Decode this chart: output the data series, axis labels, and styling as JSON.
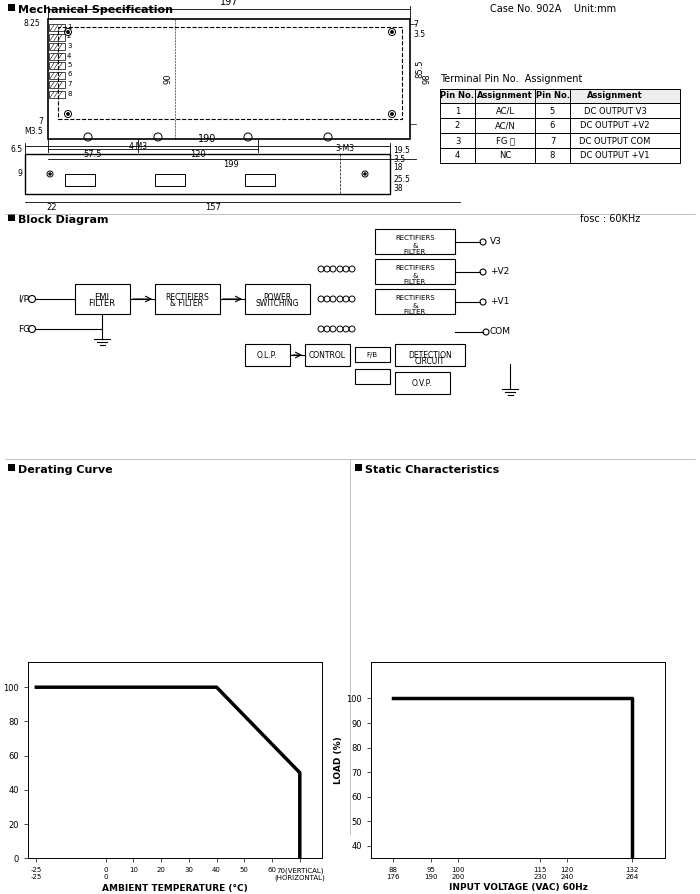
{
  "title": "Mechanical Specification",
  "case_info": "Case No. 902A   Unit:mm",
  "bg_color": "#ffffff",
  "section_headers": [
    "Mechanical Specification",
    "Block Diagram",
    "Derating Curve",
    "Static Characteristics"
  ],
  "terminal_table": {
    "header": "Terminal Pin No.  Assignment",
    "cols": [
      "Pin No.",
      "Assignment",
      "Pin No.",
      "Assignment"
    ],
    "rows": [
      [
        "1",
        "AC/L",
        "5",
        "DC OUTPUT V3"
      ],
      [
        "2",
        "AC/N",
        "6",
        "DC OUTPUT +V2"
      ],
      [
        "3",
        "FG ⏚",
        "7",
        "DC OUTPUT COM"
      ],
      [
        "4",
        "NC",
        "8",
        "DC OUTPUT +V1"
      ]
    ]
  },
  "derating_curve": {
    "x": [
      -25,
      25,
      40,
      70,
      70
    ],
    "y": [
      100,
      100,
      100,
      50,
      0
    ],
    "xlim": [
      -25,
      75
    ],
    "ylim": [
      0,
      110
    ],
    "xticks": [
      -25,
      0,
      10,
      20,
      30,
      40,
      50,
      60,
      70
    ],
    "xtick_labels": [
      "-25\n-25",
      "0\n0",
      "10",
      "20",
      "30",
      "40",
      "50",
      "60",
      "70(VERTICAL)\n(HORIZONTAL)"
    ],
    "yticks": [
      0,
      20,
      40,
      60,
      80,
      100
    ],
    "xlabel": "AMBIENT TEMPERATURE (°C)",
    "ylabel": "LOAD (%)"
  },
  "static_curve": {
    "x": [
      88,
      90,
      132,
      132
    ],
    "y": [
      100,
      100,
      100,
      0
    ],
    "xlim": [
      85,
      140
    ],
    "ylim": [
      35,
      115
    ],
    "xticks": [
      88,
      95,
      100,
      115,
      120,
      132
    ],
    "xtick_labels": [
      "88\n176",
      "95\n190",
      "100\n200",
      "115\n230",
      "120\n240",
      "132\n264"
    ],
    "yticks": [
      40,
      50,
      60,
      70,
      80,
      90,
      100
    ],
    "xlabel": "INPUT VOLTAGE (VAC) 60Hz",
    "ylabel": "LOAD (%)"
  },
  "fosc": "fosc : 60KHz"
}
